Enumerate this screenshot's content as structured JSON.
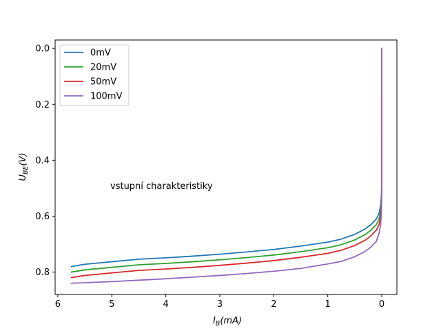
{
  "chart_data": {
    "type": "line",
    "title": "",
    "xlabel_main": "I",
    "xlabel_sub": "B",
    "xlabel_tail": "(mA)",
    "ylabel_main": "U",
    "ylabel_sub": "BE",
    "ylabel_tail": "(V)",
    "x_inverted": true,
    "y_inverted": true,
    "xlim": [
      6.05,
      -0.28
    ],
    "ylim": [
      -0.03,
      0.88
    ],
    "xticks": [
      6,
      5,
      4,
      3,
      2,
      1,
      0
    ],
    "yticks": [
      0.0,
      0.2,
      0.4,
      0.6,
      0.8
    ],
    "xtick_labels": [
      "6",
      "5",
      "4",
      "3",
      "2",
      "1",
      "0"
    ],
    "ytick_labels": [
      "0.0",
      "0.2",
      "0.4",
      "0.6",
      "0.8"
    ],
    "grid": false,
    "legend_position": "top-left",
    "annotation": "vstupní charakteristiky",
    "series": [
      {
        "name": "0mV",
        "color": "#1f77b4",
        "x": [
          0.0,
          0.0002,
          0.001,
          0.005,
          0.02,
          0.05,
          0.1,
          0.2,
          0.3,
          0.5,
          0.75,
          1.0,
          1.5,
          2.0,
          2.5,
          3.0,
          3.5,
          4.0,
          4.5,
          5.0,
          5.5,
          5.75
        ],
        "y": [
          0.0,
          0.35,
          0.45,
          0.52,
          0.56,
          0.59,
          0.61,
          0.63,
          0.645,
          0.665,
          0.682,
          0.693,
          0.707,
          0.719,
          0.728,
          0.736,
          0.743,
          0.749,
          0.754,
          0.763,
          0.772,
          0.78
        ]
      },
      {
        "name": "20mV",
        "color": "#2ca02c",
        "x": [
          0.0,
          0.0002,
          0.001,
          0.005,
          0.02,
          0.05,
          0.1,
          0.2,
          0.3,
          0.5,
          0.75,
          1.0,
          1.5,
          2.0,
          2.5,
          3.0,
          3.5,
          4.0,
          4.5,
          5.0,
          5.5,
          5.75
        ],
        "y": [
          0.0,
          0.37,
          0.47,
          0.54,
          0.58,
          0.61,
          0.63,
          0.65,
          0.665,
          0.685,
          0.702,
          0.713,
          0.727,
          0.739,
          0.748,
          0.756,
          0.763,
          0.769,
          0.774,
          0.783,
          0.792,
          0.8
        ]
      },
      {
        "name": "50mV",
        "color": "#d62728",
        "x": [
          0.0,
          0.0002,
          0.001,
          0.005,
          0.02,
          0.05,
          0.1,
          0.2,
          0.3,
          0.5,
          0.75,
          1.0,
          1.5,
          2.0,
          2.5,
          3.0,
          3.5,
          4.0,
          4.5,
          5.0,
          5.5,
          5.75
        ],
        "y": [
          0.0,
          0.39,
          0.49,
          0.56,
          0.6,
          0.63,
          0.65,
          0.67,
          0.685,
          0.705,
          0.722,
          0.733,
          0.747,
          0.759,
          0.768,
          0.776,
          0.783,
          0.789,
          0.794,
          0.803,
          0.812,
          0.82
        ]
      },
      {
        "name": "100mV",
        "color": "#9467bd",
        "x": [
          0.0,
          0.0002,
          0.001,
          0.005,
          0.02,
          0.05,
          0.1,
          0.2,
          0.3,
          0.5,
          0.75,
          1.0,
          1.5,
          2.0,
          2.5,
          3.0,
          3.5,
          4.0,
          4.5,
          5.0,
          5.5,
          5.75
        ],
        "y": [
          0.0,
          0.41,
          0.51,
          0.58,
          0.63,
          0.66,
          0.69,
          0.71,
          0.725,
          0.745,
          0.762,
          0.771,
          0.787,
          0.797,
          0.805,
          0.812,
          0.818,
          0.824,
          0.829,
          0.834,
          0.838,
          0.84
        ]
      }
    ]
  }
}
